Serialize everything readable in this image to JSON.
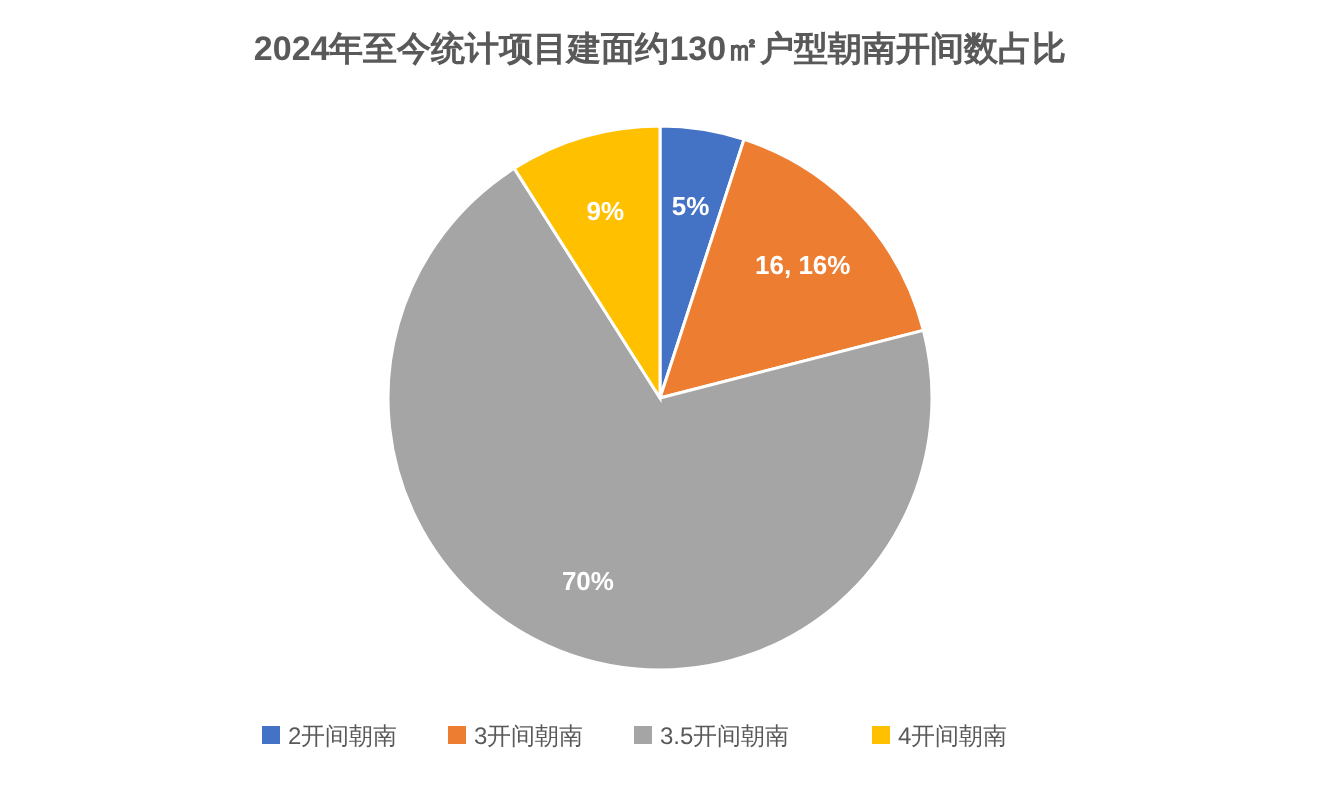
{
  "chart_data": {
    "type": "pie",
    "title": "2024年至今统计项目建面约130㎡户型朝南开间数占比",
    "categories": [
      "2开间朝南",
      "3开间朝南",
      "3.5开间朝南",
      "4开间朝南"
    ],
    "values": [
      5,
      16,
      70,
      9
    ],
    "colors": [
      "#4472c4",
      "#ed7d31",
      "#a5a5a5",
      "#ffc000"
    ],
    "value_labels": [
      "5%",
      "16, 16%",
      "70%",
      "9%"
    ],
    "legend": "bottom"
  }
}
